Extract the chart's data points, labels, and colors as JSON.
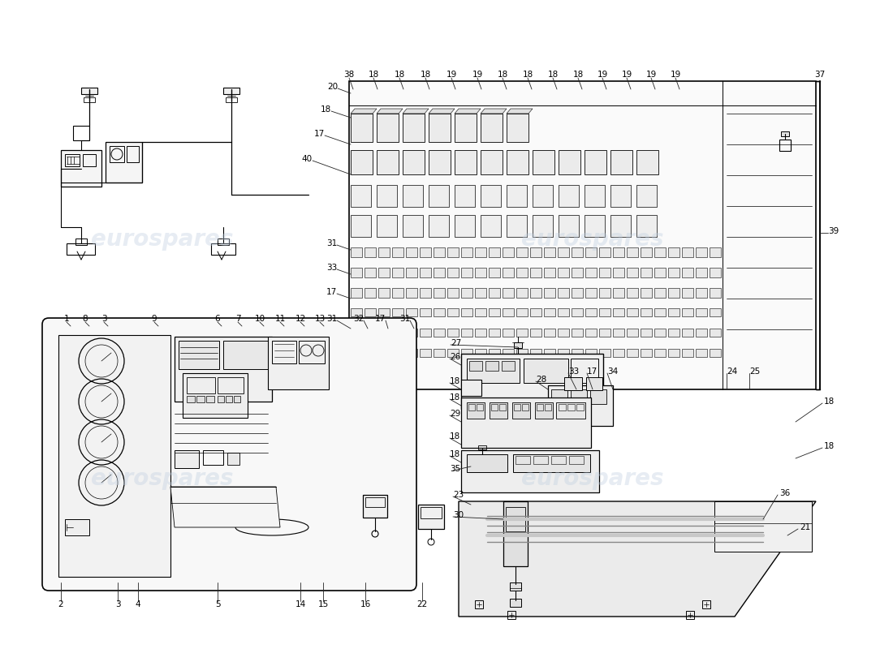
{
  "background_color": "#ffffff",
  "line_color": "#000000",
  "watermark_text": "eurospares",
  "watermark_color": "#c0cfe0",
  "watermark_alpha": 0.38,
  "fig_width": 11.0,
  "fig_height": 8.0,
  "dpi": 100
}
